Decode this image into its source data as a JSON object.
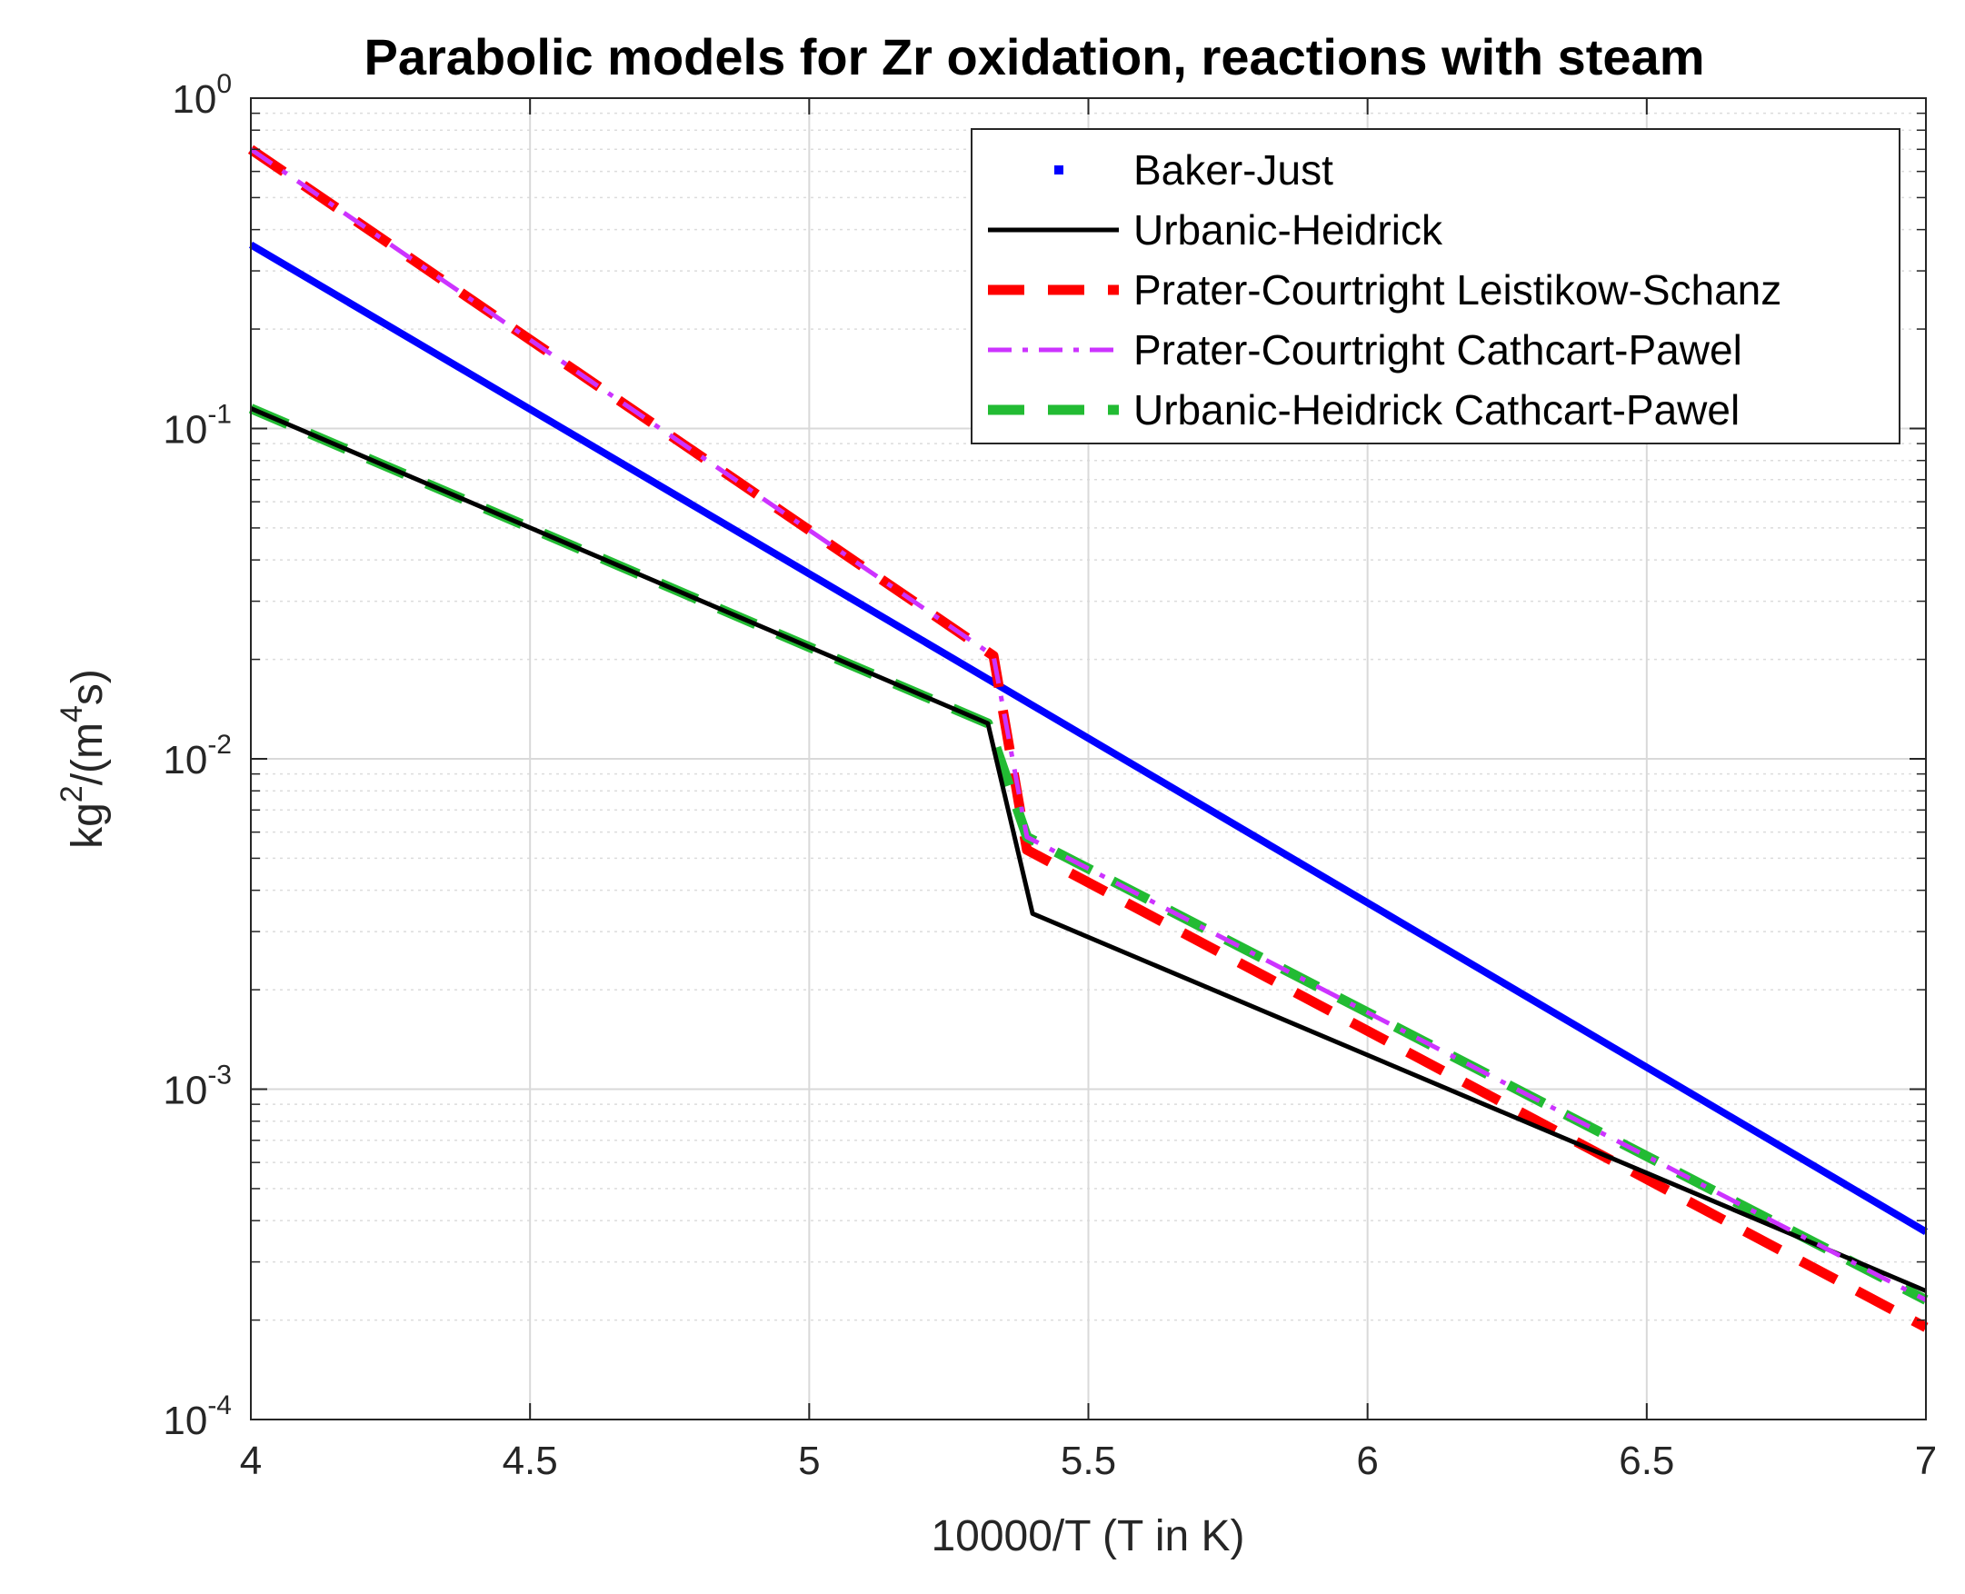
{
  "chart_data": {
    "type": "line",
    "title": "Parabolic models for Zr oxidation, reactions with steam",
    "xlabel": "10000/T (T in K)",
    "ylabel_parts": [
      "kg",
      "2",
      "/(m",
      "4",
      "s)"
    ],
    "xlim": [
      4,
      7
    ],
    "ylim": [
      0.0001,
      1
    ],
    "yscale": "log",
    "grid": true,
    "minor_grid": true,
    "legend_position": "top-right",
    "x_ticks": [
      "4",
      "4.5",
      "5",
      "5.5",
      "6",
      "6.5",
      "7"
    ],
    "y_ticks": [
      {
        "base": "10",
        "exp": "-4",
        "value": 0.0001
      },
      {
        "base": "10",
        "exp": "-3",
        "value": 0.001
      },
      {
        "base": "10",
        "exp": "-2",
        "value": 0.01
      },
      {
        "base": "10",
        "exp": "-1",
        "value": 0.1
      },
      {
        "base": "10",
        "exp": "0",
        "value": 1
      }
    ],
    "series": [
      {
        "name": "Baker-Just",
        "color": "#0000ff",
        "style": "solid-thick",
        "legend_marker": "dot",
        "x": [
          4.0,
          7.0
        ],
        "y": [
          0.36,
          0.00037
        ]
      },
      {
        "name": "Urbanic-Heidrick",
        "color": "#000000",
        "style": "solid",
        "x": [
          4.0,
          5.32,
          5.4,
          7.0
        ],
        "y": [
          0.115,
          0.0128,
          0.0034,
          0.000245
        ]
      },
      {
        "name": "Prater-Courtright Leistikow-Schanz",
        "color": "#ff0000",
        "style": "dashed",
        "x": [
          4.0,
          5.33,
          5.39,
          7.0
        ],
        "y": [
          0.7,
          0.0205,
          0.0053,
          0.00019
        ]
      },
      {
        "name": "Prater-Courtright Cathcart-Pawel",
        "color": "#cc33ff",
        "style": "dashdot",
        "x": [
          4.0,
          5.33,
          5.39,
          7.0
        ],
        "y": [
          0.7,
          0.0205,
          0.0058,
          0.00023
        ]
      },
      {
        "name": "Urbanic-Heidrick Cathcart-Pawel",
        "color": "#22bb33",
        "style": "dashed",
        "x": [
          4.0,
          5.32,
          5.39,
          7.0
        ],
        "y": [
          0.115,
          0.0128,
          0.0058,
          0.00023
        ]
      }
    ]
  }
}
